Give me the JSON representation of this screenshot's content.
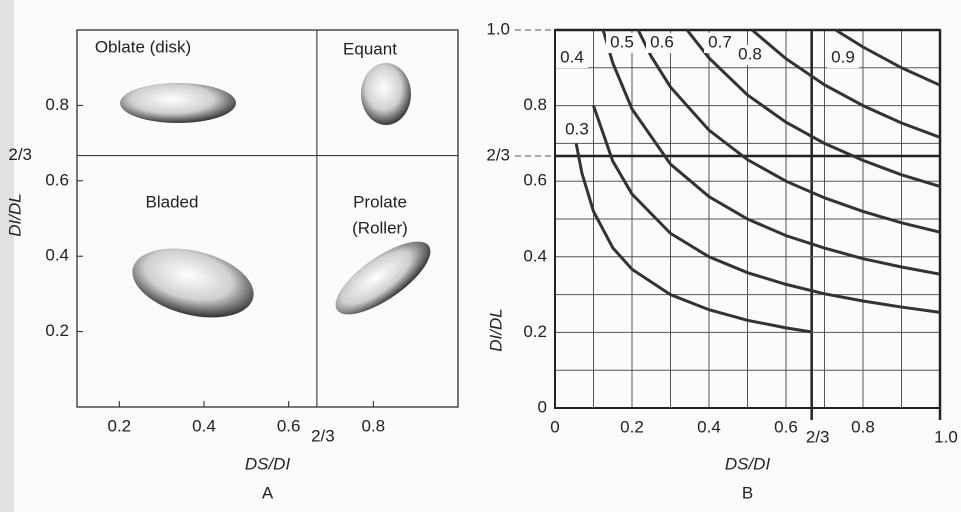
{
  "chart_data": [
    {
      "type": "region",
      "label": "A",
      "x_label": "DS/DI",
      "y_label": "DI/DL",
      "xlim": [
        0.1,
        1.0
      ],
      "ylim": [
        0,
        1.0
      ],
      "xticks": [
        0.2,
        0.4,
        0.6,
        {
          "value": 0.6667,
          "label": "2/3"
        },
        0.8
      ],
      "yticks": [
        0.2,
        0.4,
        0.6,
        {
          "value": 0.6667,
          "label": "2/3"
        },
        0.8
      ],
      "regions": [
        {
          "name": [
            "Oblate (disk)"
          ]
        },
        {
          "name": [
            "Equant"
          ]
        },
        {
          "name": [
            "Bladed"
          ]
        },
        {
          "name": [
            "Prolate",
            "(Roller)"
          ]
        }
      ]
    },
    {
      "type": "line",
      "label": "B",
      "x_label": "DS/DI",
      "y_label": "DI/DL",
      "xlim": [
        0,
        1.0
      ],
      "ylim": [
        0,
        1.0
      ],
      "xticks": [
        0,
        0.2,
        0.4,
        0.6,
        {
          "value": 0.6667,
          "label": "2/3"
        },
        0.8,
        {
          "value": 1.0,
          "label": "1.0"
        }
      ],
      "yticks": [
        0,
        0.2,
        0.4,
        0.6,
        {
          "value": 0.6667,
          "label": "2/3"
        },
        0.8,
        {
          "value": 1.0,
          "label": "1.0"
        }
      ],
      "minor_ticks": [
        0.1,
        0.3,
        0.5,
        0.7,
        0.9
      ],
      "grid": true,
      "color": "#333333",
      "series": [
        {
          "name": "0.3",
          "x": [
            0.055,
            0.07,
            0.1,
            0.15,
            0.2,
            0.3,
            0.4,
            0.5,
            0.6,
            0.6667
          ],
          "values": [
            0.7,
            0.621,
            0.52,
            0.424,
            0.367,
            0.3,
            0.26,
            0.232,
            0.212,
            0.201
          ]
        },
        {
          "name": "0.4",
          "x": [
            0.1,
            0.15,
            0.2,
            0.3,
            0.4,
            0.5,
            0.6,
            0.7,
            0.8,
            0.9,
            1.0
          ],
          "values": [
            0.8,
            0.653,
            0.566,
            0.462,
            0.4,
            0.358,
            0.327,
            0.302,
            0.283,
            0.267,
            0.253
          ]
        },
        {
          "name": "0.5",
          "x": [
            0.125,
            0.15,
            0.2,
            0.3,
            0.4,
            0.5,
            0.6,
            0.7,
            0.8,
            0.9,
            1.0
          ],
          "values": [
            1.0,
            0.913,
            0.791,
            0.645,
            0.559,
            0.5,
            0.456,
            0.423,
            0.395,
            0.373,
            0.354
          ]
        },
        {
          "name": "0.6",
          "x": [
            0.216,
            0.25,
            0.3,
            0.4,
            0.5,
            0.6,
            0.7,
            0.8,
            0.9,
            1.0
          ],
          "values": [
            1.0,
            0.93,
            0.849,
            0.735,
            0.657,
            0.6,
            0.556,
            0.52,
            0.49,
            0.465
          ]
        },
        {
          "name": "0.7",
          "x": [
            0.343,
            0.4,
            0.5,
            0.6,
            0.7,
            0.8,
            0.9,
            1.0
          ],
          "values": [
            1.0,
            0.926,
            0.828,
            0.756,
            0.7,
            0.655,
            0.617,
            0.586
          ]
        },
        {
          "name": "0.8",
          "x": [
            0.512,
            0.6,
            0.7,
            0.8,
            0.9,
            1.0
          ],
          "values": [
            1.0,
            0.924,
            0.855,
            0.8,
            0.754,
            0.716
          ]
        },
        {
          "name": "0.9",
          "x": [
            0.729,
            0.8,
            0.9,
            1.0
          ],
          "values": [
            1.0,
            0.955,
            0.9,
            0.854
          ]
        }
      ]
    }
  ]
}
